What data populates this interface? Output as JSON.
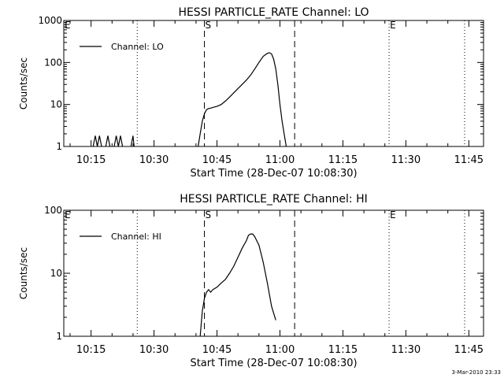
{
  "footer": {
    "timestamp": "3-Mar-2010 23:33"
  },
  "chart_data": [
    {
      "type": "line",
      "title": "HESSI PARTICLE_RATE Channel: LO",
      "xlabel": "Start Time (28-Dec-07 10:08:30)",
      "ylabel": "Counts/sec",
      "yscale": "log",
      "xlim": [
        "10:08:30",
        "11:48:30"
      ],
      "ylim": [
        1,
        1000
      ],
      "x_ticks": [
        "10:15",
        "10:30",
        "10:45",
        "11:00",
        "11:15",
        "11:30",
        "11:45"
      ],
      "y_ticks": [
        "1",
        "10",
        "100",
        "1000"
      ],
      "legend": {
        "position": "top-left",
        "entries": [
          "Channel: LO"
        ]
      },
      "markers": [
        {
          "time": "10:08:30",
          "style": "dotted",
          "label": "E"
        },
        {
          "time": "10:26:00",
          "style": "dotted",
          "label": ""
        },
        {
          "time": "10:42:00",
          "style": "dashed",
          "label": "S"
        },
        {
          "time": "11:03:30",
          "style": "dashed",
          "label": ""
        },
        {
          "time": "11:26:00",
          "style": "dotted",
          "label": "E"
        },
        {
          "time": "11:44:00",
          "style": "dotted",
          "label": ""
        }
      ],
      "series": [
        {
          "name": "Channel: LO",
          "segments": [
            [
              [
                "10:15:30",
                1
              ],
              [
                "10:16:00",
                1.8
              ],
              [
                "10:16:30",
                1
              ],
              [
                "10:17:00",
                1.8
              ],
              [
                "10:17:30",
                1
              ]
            ],
            [
              [
                "10:18:30",
                1
              ],
              [
                "10:19:00",
                1.8
              ],
              [
                "10:19:30",
                1
              ]
            ],
            [
              [
                "10:20:30",
                1
              ],
              [
                "10:21:00",
                1.8
              ],
              [
                "10:21:30",
                1
              ],
              [
                "10:22:00",
                1.8
              ],
              [
                "10:22:30",
                1
              ]
            ],
            [
              [
                "10:24:30",
                1
              ],
              [
                "10:25:00",
                1.8
              ],
              [
                "10:25:15",
                1
              ]
            ],
            [
              [
                "10:40:30",
                1
              ],
              [
                "10:41:00",
                2
              ],
              [
                "10:41:30",
                4
              ],
              [
                "10:42:00",
                6
              ],
              [
                "10:42:30",
                7.5
              ],
              [
                "10:43:00",
                8
              ],
              [
                "10:43:30",
                8.2
              ],
              [
                "10:44:00",
                8.5
              ],
              [
                "10:45:00",
                9
              ],
              [
                "10:46:00",
                10
              ],
              [
                "10:47:00",
                12
              ],
              [
                "10:48:00",
                15
              ],
              [
                "10:49:00",
                19
              ],
              [
                "10:50:00",
                24
              ],
              [
                "10:51:00",
                30
              ],
              [
                "10:52:00",
                38
              ],
              [
                "10:53:00",
                50
              ],
              [
                "10:54:00",
                70
              ],
              [
                "10:55:00",
                100
              ],
              [
                "10:56:00",
                140
              ],
              [
                "10:57:00",
                165
              ],
              [
                "10:57:30",
                170
              ],
              [
                "10:58:00",
                160
              ],
              [
                "10:58:30",
                120
              ],
              [
                "10:59:00",
                70
              ],
              [
                "10:59:30",
                30
              ],
              [
                "11:00:00",
                10
              ],
              [
                "11:00:30",
                4
              ],
              [
                "11:01:00",
                2
              ],
              [
                "11:01:30",
                1
              ]
            ]
          ]
        }
      ]
    },
    {
      "type": "line",
      "title": "HESSI PARTICLE_RATE Channel: HI",
      "xlabel": "Start Time (28-Dec-07 10:08:30)",
      "ylabel": "Counts/sec",
      "yscale": "log",
      "xlim": [
        "10:08:30",
        "11:48:30"
      ],
      "ylim": [
        1,
        100
      ],
      "x_ticks": [
        "10:15",
        "10:30",
        "10:45",
        "11:00",
        "11:15",
        "11:30",
        "11:45"
      ],
      "y_ticks": [
        "1",
        "10",
        "100"
      ],
      "legend": {
        "position": "top-left",
        "entries": [
          "Channel: HI"
        ]
      },
      "markers": [
        {
          "time": "10:08:30",
          "style": "dotted",
          "label": "E"
        },
        {
          "time": "10:26:00",
          "style": "dotted",
          "label": ""
        },
        {
          "time": "10:42:00",
          "style": "dashed",
          "label": "S"
        },
        {
          "time": "11:03:30",
          "style": "dashed",
          "label": ""
        },
        {
          "time": "11:26:00",
          "style": "dotted",
          "label": "E"
        },
        {
          "time": "11:44:00",
          "style": "dotted",
          "label": ""
        }
      ],
      "series": [
        {
          "name": "Channel: HI",
          "segments": [
            [
              [
                "10:41:00",
                1
              ],
              [
                "10:41:30",
                2.5
              ],
              [
                "10:42:00",
                4
              ],
              [
                "10:42:30",
                5
              ],
              [
                "10:43:00",
                5.5
              ],
              [
                "10:43:30",
                5
              ],
              [
                "10:44:00",
                5.5
              ],
              [
                "10:45:00",
                6
              ],
              [
                "10:46:00",
                7
              ],
              [
                "10:47:00",
                8
              ],
              [
                "10:48:00",
                10
              ],
              [
                "10:49:00",
                13
              ],
              [
                "10:50:00",
                18
              ],
              [
                "10:51:00",
                25
              ],
              [
                "10:52:00",
                33
              ],
              [
                "10:52:30",
                40
              ],
              [
                "10:53:00",
                42
              ],
              [
                "10:53:30",
                42
              ],
              [
                "10:54:00",
                38
              ],
              [
                "10:55:00",
                28
              ],
              [
                "10:56:00",
                15
              ],
              [
                "10:57:00",
                7
              ],
              [
                "10:58:00",
                3
              ],
              [
                "10:59:00",
                1.8
              ]
            ]
          ]
        }
      ]
    }
  ]
}
